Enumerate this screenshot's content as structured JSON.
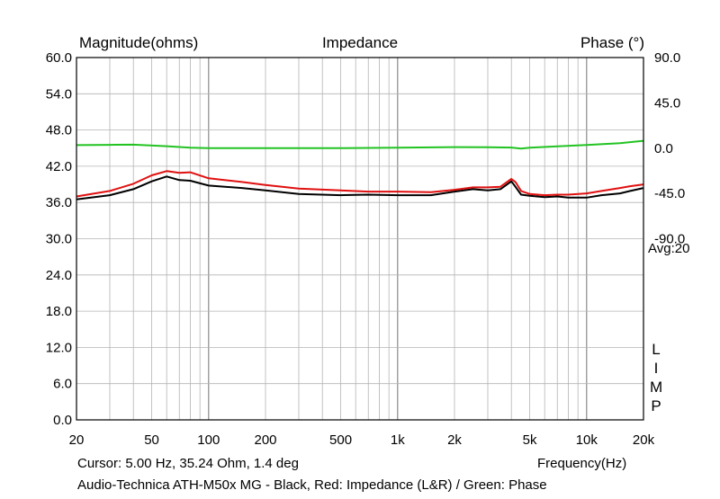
{
  "chart_data": {
    "type": "line",
    "title": "Impedance",
    "ylabel_left": "Magnitude(ohms)",
    "ylabel_right": "Phase (°)",
    "xlabel": "Frequency(Hz)",
    "x_scale": "log",
    "xlim": [
      20,
      20000
    ],
    "ylim_left": [
      0,
      60
    ],
    "ylim_right": [
      -270,
      90
    ],
    "grid": true,
    "x_ticks": [
      {
        "value": 20,
        "label": "20"
      },
      {
        "value": 50,
        "label": "50"
      },
      {
        "value": 100,
        "label": "100"
      },
      {
        "value": 200,
        "label": "200"
      },
      {
        "value": 500,
        "label": "500"
      },
      {
        "value": 1000,
        "label": "1k"
      },
      {
        "value": 2000,
        "label": "2k"
      },
      {
        "value": 5000,
        "label": "5k"
      },
      {
        "value": 10000,
        "label": "10k"
      },
      {
        "value": 20000,
        "label": "20k"
      }
    ],
    "y_ticks_left": [
      "0.0",
      "6.0",
      "12.0",
      "18.0",
      "24.0",
      "30.0",
      "36.0",
      "42.0",
      "48.0",
      "54.0",
      "60.0"
    ],
    "y_ticks_right": [
      "90.0",
      "45.0",
      "0.0",
      "-45.0",
      "-90.0"
    ],
    "series": [
      {
        "name": "Black",
        "axis": "left",
        "color": "#000000",
        "x": [
          20,
          30,
          40,
          50,
          60,
          70,
          80,
          100,
          150,
          200,
          300,
          500,
          700,
          1000,
          1500,
          2000,
          2500,
          3000,
          3500,
          4000,
          4200,
          4500,
          5000,
          6000,
          7000,
          8000,
          10000,
          12000,
          15000,
          17000,
          20000
        ],
        "values": [
          36.5,
          37.2,
          38.2,
          39.5,
          40.3,
          39.7,
          39.6,
          38.8,
          38.4,
          38.0,
          37.4,
          37.2,
          37.3,
          37.2,
          37.2,
          37.8,
          38.2,
          38.0,
          38.2,
          39.5,
          38.6,
          37.3,
          37.1,
          36.9,
          37.0,
          36.8,
          36.8,
          37.2,
          37.5,
          37.9,
          38.4
        ]
      },
      {
        "name": "Red: Impedance (L&R)",
        "axis": "left",
        "color": "#e01010",
        "x": [
          20,
          30,
          40,
          50,
          60,
          70,
          80,
          100,
          150,
          200,
          300,
          500,
          700,
          1000,
          1500,
          2000,
          2500,
          3000,
          3500,
          4000,
          4200,
          4500,
          5000,
          6000,
          7000,
          8000,
          10000,
          12000,
          15000,
          17000,
          20000
        ],
        "values": [
          37.0,
          37.9,
          39.1,
          40.5,
          41.2,
          40.9,
          41.0,
          40.0,
          39.4,
          38.9,
          38.3,
          38.0,
          37.8,
          37.8,
          37.7,
          38.1,
          38.5,
          38.5,
          38.6,
          39.9,
          39.4,
          37.9,
          37.4,
          37.2,
          37.3,
          37.3,
          37.5,
          37.9,
          38.4,
          38.7,
          39.0
        ]
      },
      {
        "name": "Green: Phase",
        "axis": "right",
        "color": "#22c322",
        "x": [
          20,
          30,
          40,
          60,
          80,
          100,
          200,
          500,
          1000,
          2000,
          3000,
          4000,
          4500,
          5000,
          7000,
          10000,
          15000,
          20000
        ],
        "values": [
          3.0,
          3.3,
          3.4,
          1.9,
          0.5,
          0.0,
          0.0,
          0.0,
          0.5,
          1.0,
          0.9,
          0.6,
          -0.5,
          0.5,
          1.7,
          3.2,
          5.0,
          7.3
        ]
      }
    ]
  },
  "annotations": {
    "avg": "Avg:20",
    "limp": [
      "L",
      "I",
      "M",
      "P"
    ],
    "cursor": "Cursor: 5.00 Hz, 35.24 Ohm, 1.4 deg",
    "caption": "Audio-Technica ATH-M50x MG - Black, Red: Impedance (L&R) / Green: Phase"
  }
}
